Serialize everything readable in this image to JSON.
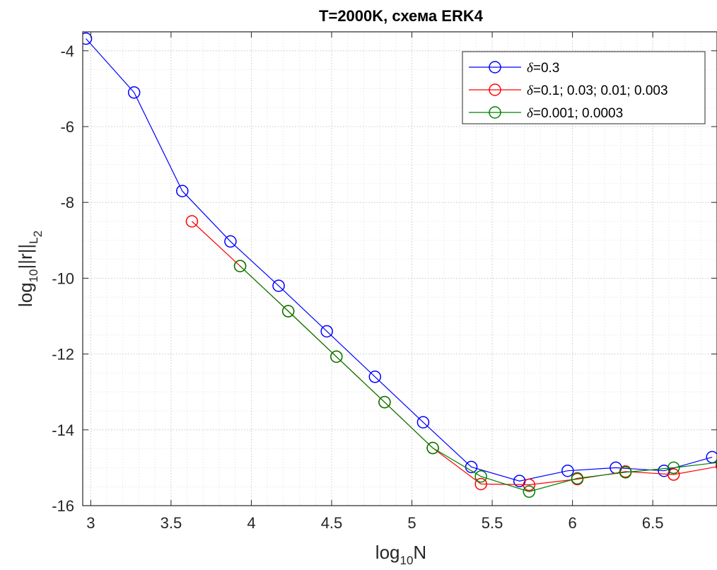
{
  "chart_data": {
    "type": "line",
    "title": "T=2000K, схема ERK4",
    "xlabel": {
      "base": "log",
      "sub": "10",
      "tail": "N"
    },
    "ylabel": {
      "base": "log",
      "sub": "10",
      "mid": "||r||",
      "sub2": "L",
      "sub3": "2"
    },
    "xlim": [
      2.95,
      6.9
    ],
    "ylim": [
      -16,
      -3.5
    ],
    "xticks": [
      3,
      3.5,
      4,
      4.5,
      5,
      5.5,
      6,
      6.5
    ],
    "xtick_labels": [
      "3",
      "3.5",
      "4",
      "4.5",
      "5",
      "5.5",
      "6",
      "6.5"
    ],
    "yticks": [
      -4,
      -6,
      -8,
      -10,
      -12,
      -14,
      -16
    ],
    "ytick_labels": [
      "-4",
      "-6",
      "-8",
      "-10",
      "-12",
      "-14",
      "-16"
    ],
    "grid": true,
    "minor_grid": true,
    "legend_position": "top-right",
    "series": [
      {
        "name": "δ=0.3",
        "color": "#0000ff",
        "x": [
          2.97,
          3.27,
          3.57,
          3.87,
          4.17,
          4.47,
          4.77,
          5.07,
          5.37,
          5.67,
          5.97,
          6.27,
          6.57,
          6.87
        ],
        "y": [
          -3.68,
          -5.1,
          -7.7,
          -9.03,
          -10.2,
          -11.4,
          -12.6,
          -13.8,
          -14.98,
          -15.35,
          -15.08,
          -15.0,
          -15.08,
          -14.72
        ]
      },
      {
        "name": "δ=0.1; 0.03; 0.01; 0.003",
        "color": "#ff0000",
        "x": [
          3.63,
          3.93,
          4.23,
          4.53,
          4.83,
          5.13,
          5.43,
          5.73,
          6.03,
          6.33,
          6.63,
          6.93
        ],
        "y": [
          -8.5,
          -9.68,
          -10.87,
          -12.07,
          -13.27,
          -14.48,
          -15.43,
          -15.45,
          -15.3,
          -15.1,
          -15.18,
          -14.95
        ]
      },
      {
        "name": "δ=0.001; 0.0003",
        "color": "#008000",
        "x": [
          3.93,
          4.23,
          4.53,
          4.83,
          5.13,
          5.43,
          5.73,
          6.03,
          6.33,
          6.63,
          6.93
        ],
        "y": [
          -9.68,
          -10.87,
          -12.07,
          -13.27,
          -14.48,
          -15.23,
          -15.63,
          -15.28,
          -15.12,
          -15.0,
          -14.85
        ]
      }
    ]
  }
}
